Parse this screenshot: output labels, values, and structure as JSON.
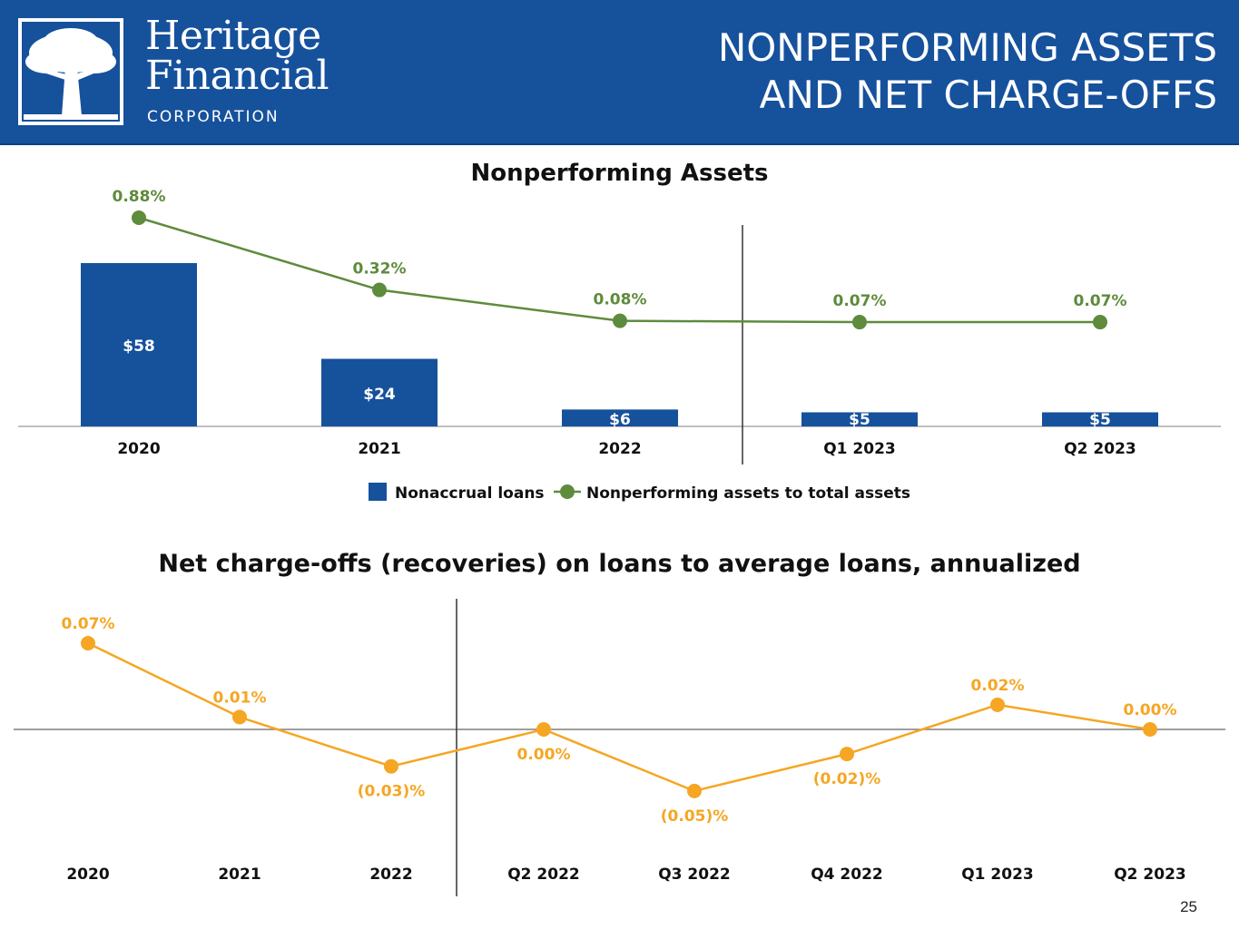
{
  "header": {
    "brand_line1": "Heritage",
    "brand_line2": "Financial",
    "brand_line3": "CORPORATION",
    "title_line1": "NONPERFORMING ASSETS",
    "title_line2": "AND NET CHARGE-OFFS",
    "logo_icon": "tree-icon"
  },
  "colors": {
    "header_bg": "#16519c",
    "bar": "#16519c",
    "nonperforming_line": "#5e8b3c",
    "chargeoff_line": "#f5a623",
    "axis": "#7f7f7f"
  },
  "chart_data": [
    {
      "type": "bar",
      "title": "Nonperforming Assets",
      "categories": [
        "2020",
        "2021",
        "2022",
        "Q1 2023",
        "Q2 2023"
      ],
      "series": [
        {
          "name": "Nonaccrual loans",
          "type": "bar",
          "values": [
            58,
            24,
            6,
            5,
            5
          ],
          "labels": [
            "$58",
            "$24",
            "$6",
            "$5",
            "$5"
          ]
        },
        {
          "name": "Nonperforming assets to total assets",
          "type": "line",
          "values": [
            0.88,
            0.32,
            0.08,
            0.07,
            0.07
          ],
          "labels": [
            "0.88%",
            "0.32%",
            "0.08%",
            "0.07%",
            "0.07%"
          ]
        }
      ],
      "legend_position": "bottom-center"
    },
    {
      "type": "line",
      "title": "Net charge-offs (recoveries) on loans to average loans, annualized",
      "categories": [
        "2020",
        "2021",
        "2022",
        "Q2 2022",
        "Q3 2022",
        "Q4 2022",
        "Q1 2023",
        "Q2 2023"
      ],
      "series": [
        {
          "values": [
            0.07,
            0.01,
            -0.03,
            0.0,
            -0.05,
            -0.02,
            0.02,
            0.0
          ],
          "labels": [
            "0.07%",
            "0.01%",
            "(0.03)%",
            "0.00%",
            "(0.05)%",
            "(0.02)%",
            "0.02%",
            "0.00%"
          ]
        }
      ]
    }
  ],
  "page_number": "25"
}
